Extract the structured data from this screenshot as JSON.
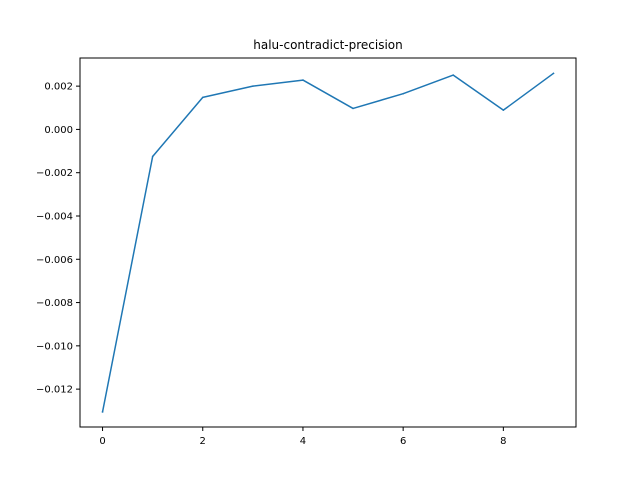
{
  "chart_data": {
    "type": "line",
    "title": "halu-contradict-precision",
    "xlabel": "",
    "ylabel": "",
    "x": [
      0,
      1,
      2,
      3,
      4,
      5,
      6,
      7,
      8,
      9
    ],
    "series": [
      {
        "values": [
          -0.01305,
          -0.00125,
          0.00148,
          0.002,
          0.00228,
          0.00097,
          0.00165,
          0.00251,
          0.00089,
          0.00259
        ],
        "color": "#1f77b4"
      }
    ],
    "xlim": [
      -0.45,
      9.45
    ],
    "ylim": [
      -0.01375,
      0.0033
    ],
    "xticks": [
      0,
      2,
      4,
      6,
      8
    ],
    "xtick_labels": [
      "0",
      "2",
      "4",
      "6",
      "8"
    ],
    "yticks": [
      0.002,
      0.0,
      -0.002,
      -0.004,
      -0.006,
      -0.008,
      -0.01,
      -0.012
    ],
    "ytick_labels": [
      "0.002",
      "0.000",
      "−0.002",
      "−0.004",
      "−0.006",
      "−0.008",
      "−0.010",
      "−0.012"
    ],
    "grid": false,
    "legend": "none"
  }
}
